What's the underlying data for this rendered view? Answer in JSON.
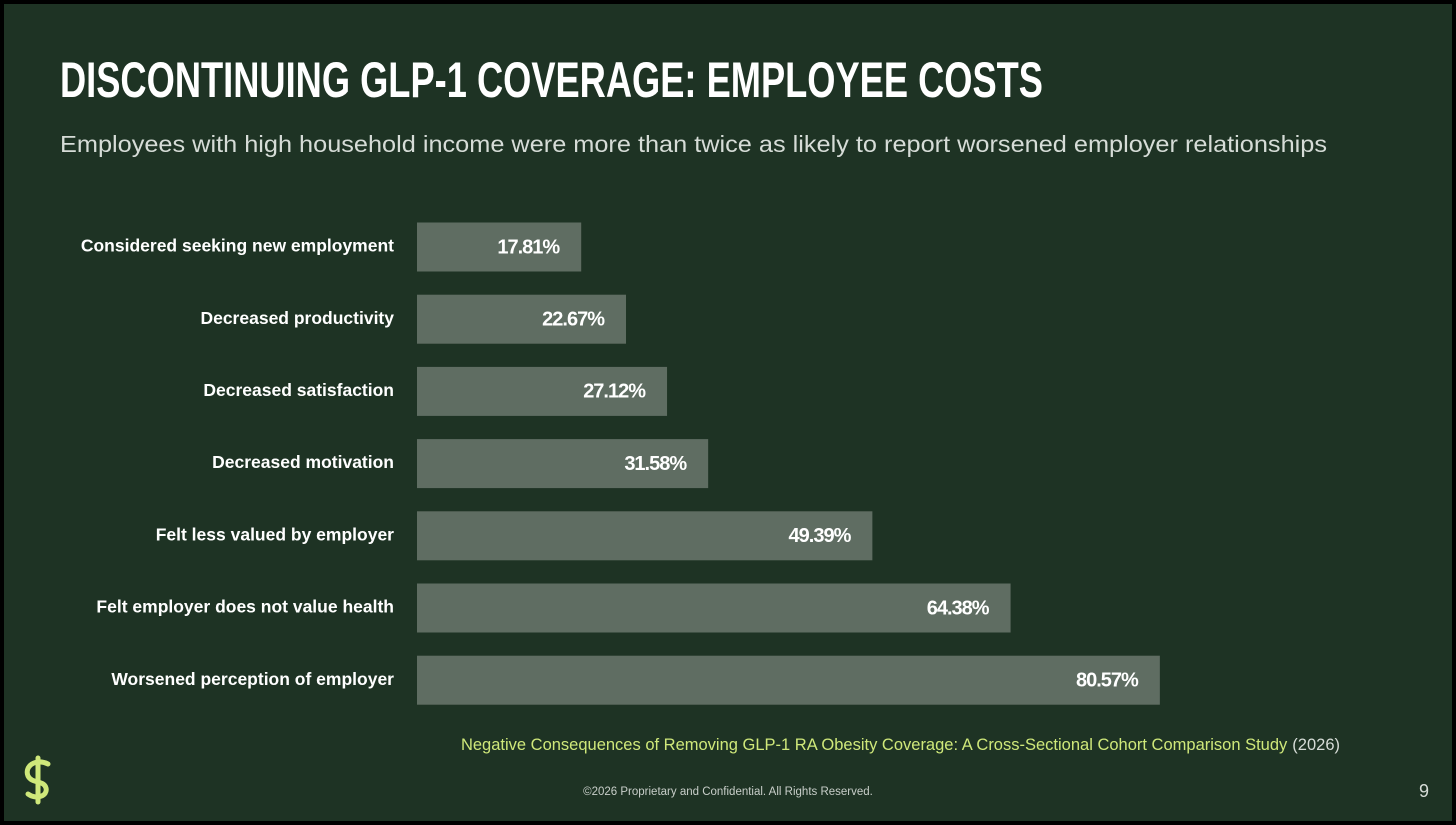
{
  "chart_data": {
    "type": "hbar",
    "title": "DISCONTINUING GLP-1 COVERAGE: EMPLOYEE COSTS",
    "subtitle": "Employees with high household income were more than twice as likely to report worsened employer relationships",
    "categories": [
      "Considered seeking new employment",
      "Decreased productivity",
      "Decreased satisfaction",
      "Decreased motivation",
      "Felt less valued by employer",
      "Felt employer does not value health",
      "Worsened perception of employer"
    ],
    "values": [
      17.81,
      22.67,
      27.12,
      31.58,
      49.39,
      64.38,
      80.57
    ],
    "value_labels": [
      "17.81%",
      "22.67%",
      "27.12%",
      "31.58%",
      "49.39%",
      "64.38%",
      "80.57%"
    ],
    "color": "#5f6d62"
  },
  "source": {
    "text": "Negative Consequences of Removing GLP-1 RA Obesity Coverage: A Cross-Sectional Cohort Comparison Study",
    "year": "(2026)"
  },
  "footer": "©2026 Proprietary and Confidential. All Rights Reserved.",
  "page_number": 9
}
